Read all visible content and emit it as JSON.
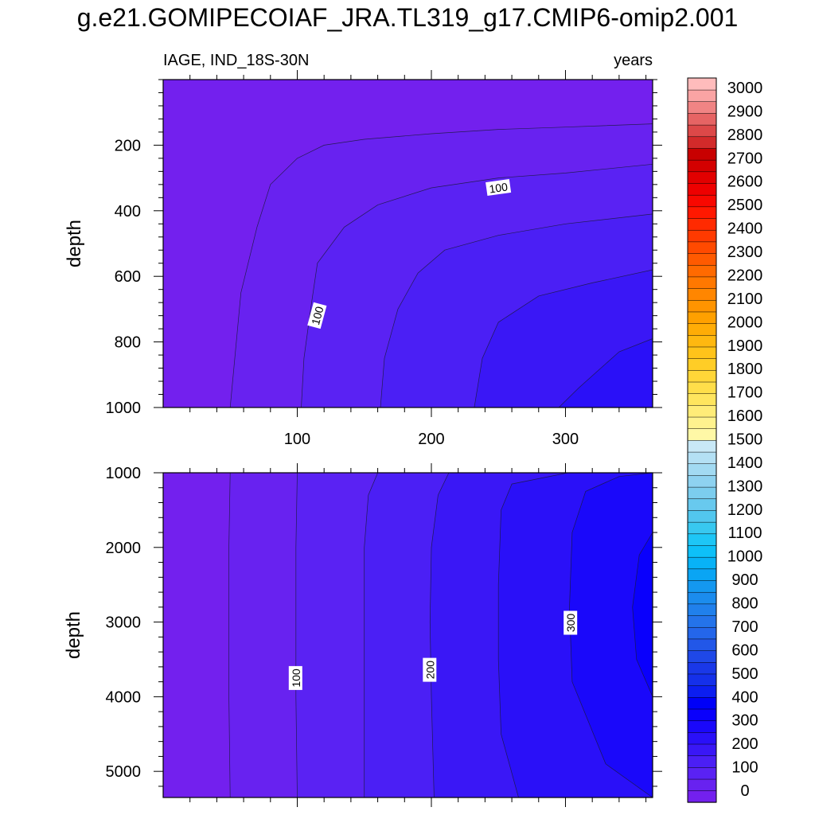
{
  "page_title": "g.e21.GOMIPECOIAF_JRA.TL319_g17.CMIP6-omip2.001",
  "chart_data": [
    {
      "type": "heatmap",
      "name": "upper-panel",
      "subtitle_left": "IAGE, IND_18S-30N",
      "subtitle_right": "years",
      "xlabel": "",
      "ylabel": "depth",
      "xlim": [
        0,
        365
      ],
      "ylim": [
        0,
        1000
      ],
      "y_reversed": true,
      "x_ticks": [
        100,
        200,
        300
      ],
      "x_tick_labels": [
        "100",
        "200",
        "300"
      ],
      "y_ticks": [
        200,
        400,
        600,
        800,
        1000
      ],
      "y_tick_labels": [
        "200",
        "400",
        "600",
        "800",
        "1000"
      ],
      "contours": [
        {
          "level": 50,
          "points": [
            [
              365,
              135
            ],
            [
              300,
              145
            ],
            [
              250,
              152
            ],
            [
              200,
              165
            ],
            [
              150,
              182
            ],
            [
              120,
              200
            ],
            [
              100,
              240
            ],
            [
              80,
              320
            ],
            [
              70,
              450
            ],
            [
              58,
              650
            ],
            [
              50,
              1000
            ]
          ]
        },
        {
          "level": 100,
          "points": [
            [
              365,
              258
            ],
            [
              300,
              285
            ],
            [
              250,
              300
            ],
            [
              200,
              330
            ],
            [
              160,
              382
            ],
            [
              135,
              450
            ],
            [
              115,
              560
            ],
            [
              110,
              700
            ],
            [
              105,
              850
            ],
            [
              103,
              1000
            ]
          ]
        },
        {
          "level": 150,
          "points": [
            [
              365,
              410
            ],
            [
              300,
              440
            ],
            [
              250,
              475
            ],
            [
              210,
              520
            ],
            [
              190,
              590
            ],
            [
              175,
              700
            ],
            [
              165,
              850
            ],
            [
              162,
              1000
            ]
          ]
        },
        {
          "level": 200,
          "points": [
            [
              365,
              580
            ],
            [
              320,
              620
            ],
            [
              280,
              660
            ],
            [
              250,
              740
            ],
            [
              238,
              850
            ],
            [
              232,
              1000
            ]
          ]
        },
        {
          "level": 250,
          "points": [
            [
              365,
              790
            ],
            [
              340,
              830
            ],
            [
              310,
              940
            ],
            [
              295,
              1000
            ]
          ]
        }
      ],
      "contour_labels": [
        {
          "text": "100",
          "x": 250,
          "y": 330,
          "angle": -8
        },
        {
          "text": "100",
          "x": 115,
          "y": 720,
          "angle": -75
        }
      ]
    },
    {
      "type": "heatmap",
      "name": "lower-panel",
      "xlabel": "",
      "ylabel": "depth",
      "xlim": [
        0,
        365
      ],
      "ylim": [
        1000,
        5350
      ],
      "y_reversed": true,
      "y_ticks": [
        1000,
        2000,
        3000,
        4000,
        5000
      ],
      "y_tick_labels": [
        "1000",
        "2000",
        "3000",
        "4000",
        "5000"
      ],
      "contours": [
        {
          "level": 50,
          "points": [
            [
              50,
              1000
            ],
            [
              49,
              2000
            ],
            [
              49,
              3000
            ],
            [
              49,
              4000
            ],
            [
              50,
              5350
            ]
          ]
        },
        {
          "level": 100,
          "points": [
            [
              100,
              1000
            ],
            [
              99,
              2000
            ],
            [
              99,
              3000
            ],
            [
              99,
              4000
            ],
            [
              100,
              5350
            ]
          ]
        },
        {
          "level": 150,
          "points": [
            [
              160,
              1000
            ],
            [
              153,
              1300
            ],
            [
              150,
              2000
            ],
            [
              150,
              3000
            ],
            [
              150,
              4000
            ],
            [
              150,
              5350
            ]
          ]
        },
        {
          "level": 200,
          "points": [
            [
              213,
              1000
            ],
            [
              205,
              1300
            ],
            [
              200,
              2000
            ],
            [
              199,
              3000
            ],
            [
              200,
              4000
            ],
            [
              202,
              5350
            ]
          ]
        },
        {
          "level": 250,
          "points": [
            [
              302,
              1000
            ],
            [
              260,
              1150
            ],
            [
              252,
              1500
            ],
            [
              250,
              2500
            ],
            [
              250,
              3500
            ],
            [
              252,
              4500
            ],
            [
              265,
              5350
            ]
          ]
        },
        {
          "level": 300,
          "points": [
            [
              365,
              1000
            ],
            [
              340,
              1050
            ],
            [
              315,
              1250
            ],
            [
              305,
              1800
            ],
            [
              303,
              2800
            ],
            [
              305,
              3800
            ],
            [
              330,
              4900
            ],
            [
              365,
              5350
            ]
          ]
        },
        {
          "level": 350,
          "points": [
            [
              365,
              1800
            ],
            [
              355,
              2100
            ],
            [
              350,
              2800
            ],
            [
              353,
              3500
            ],
            [
              365,
              4000
            ]
          ]
        }
      ],
      "contour_labels": [
        {
          "text": "100",
          "x": 99,
          "y": 3750,
          "angle": -90
        },
        {
          "text": "200",
          "x": 199,
          "y": 3640,
          "angle": -90
        },
        {
          "text": "300",
          "x": 304,
          "y": 3010,
          "angle": -90
        }
      ]
    }
  ],
  "colorbar": {
    "labels": [
      "0",
      "100",
      "200",
      "300",
      "400",
      "500",
      "600",
      "700",
      "800",
      "900",
      "1000",
      "1100",
      "1200",
      "1300",
      "1400",
      "1500",
      "1600",
      "1700",
      "1800",
      "1900",
      "2000",
      "2100",
      "2200",
      "2300",
      "2400",
      "2500",
      "2600",
      "2700",
      "2800",
      "2900",
      "3000"
    ],
    "colors": [
      "#7320ee",
      "#6822f0",
      "#5a22f3",
      "#4b1ff5",
      "#3a17f6",
      "#2a10f8",
      "#1a08fa",
      "#0a00fc",
      "#0000f8",
      "#0c1ef0",
      "#1530ea",
      "#1a38e8",
      "#1f48e8",
      "#2257e8",
      "#2466ea",
      "#2473ea",
      "#2080ec",
      "#1b8cee",
      "#1498f0",
      "#0aa5f4",
      "#08b2f6",
      "#0ec0f8",
      "#1ec6f6",
      "#38c8f0",
      "#52c7ee",
      "#68c9ee",
      "#7ccdee",
      "#8ed2f0",
      "#a2daf2",
      "#b4e0f4",
      "#c8e8f6",
      "#fff8a6",
      "#fff28e",
      "#ffec78",
      "#ffe55e",
      "#ffde4a",
      "#ffd638",
      "#ffcd26",
      "#ffc31a",
      "#ffb810",
      "#ffac06",
      "#ffa000",
      "#ff9400",
      "#ff8600",
      "#ff7800",
      "#ff6a00",
      "#ff5a00",
      "#ff4a00",
      "#ff3a00",
      "#ff2a00",
      "#ff1800",
      "#f80800",
      "#ee0000",
      "#e20000",
      "#d40000",
      "#c80000",
      "#d22a2a",
      "#dc4848",
      "#e66464",
      "#f08484",
      "#faa4a4",
      "#ffbcbc"
    ]
  }
}
